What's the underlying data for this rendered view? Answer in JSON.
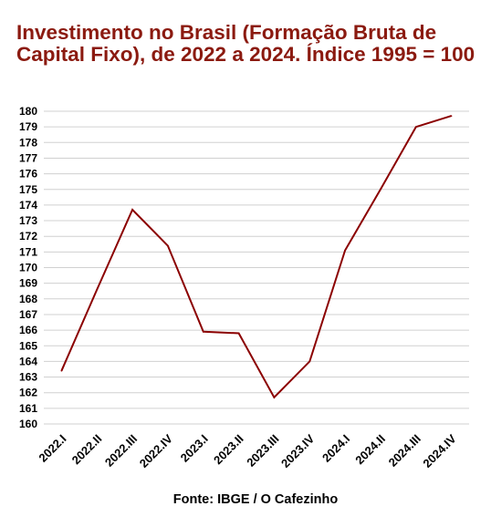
{
  "chart_data": {
    "type": "line",
    "title": "Investimento no Brasil (Formação Bruta de Capital Fixo), de 2022 a 2024. Índice 1995 = 100",
    "categories": [
      "2022.I",
      "2022.II",
      "2022.III",
      "2022.IV",
      "2023.I",
      "2023.II",
      "2023.III",
      "2023.IV",
      "2024.I",
      "2024.II",
      "2024.III",
      "2024.IV"
    ],
    "series": [
      {
        "values": [
          163.4,
          168.6,
          173.7,
          171.4,
          165.9,
          165.8,
          161.7,
          164.0,
          171.1,
          175.0,
          179.0,
          179.7
        ],
        "color": "#8b0000"
      }
    ],
    "ylim": [
      160,
      180
    ],
    "yticks": [
      160,
      161,
      162,
      163,
      164,
      165,
      166,
      167,
      168,
      169,
      170,
      171,
      172,
      173,
      174,
      175,
      176,
      177,
      178,
      179,
      180
    ],
    "grid": true,
    "legend": "none",
    "source": "Fonte: IBGE / O Cafezinho"
  }
}
